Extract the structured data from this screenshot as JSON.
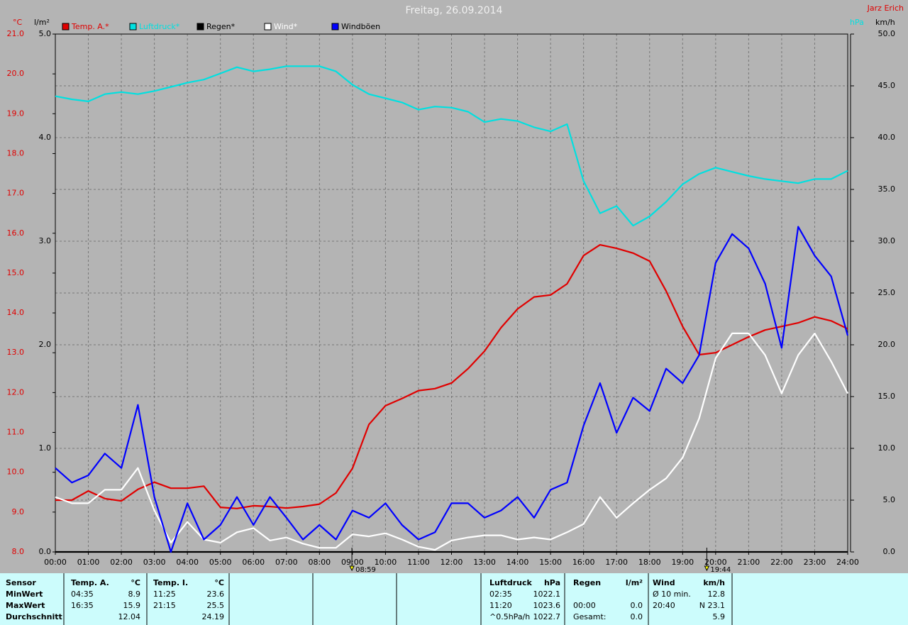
{
  "chart_data": {
    "type": "line",
    "title": "Freitag, 26.09.2014",
    "author": "Jarz Erich",
    "categories": [
      "00:00",
      null,
      "01:00",
      null,
      "02:00",
      null,
      "03:00",
      null,
      "04:00",
      null,
      "05:00",
      null,
      "06:00",
      null,
      "07:00",
      null,
      "08:00",
      null,
      "09:00",
      null,
      "10:00",
      null,
      "11:00",
      null,
      "12:00",
      null,
      "13:00",
      null,
      "14:00",
      null,
      "15:00",
      null,
      "16:00",
      null,
      "17:00",
      null,
      "18:00",
      null,
      "19:00",
      null,
      "20:00",
      null,
      "21:00",
      null,
      "22:00",
      null,
      "23:00",
      null,
      "24:00"
    ],
    "series": [
      {
        "name": "Temp. A.*",
        "color": "#e00000",
        "axis": "y",
        "values": [
          9.3,
          9.3,
          9.53,
          9.34,
          9.28,
          9.57,
          9.75,
          9.6,
          9.6,
          9.65,
          9.12,
          9.09,
          9.16,
          9.14,
          9.1,
          9.14,
          9.2,
          9.48,
          10.1,
          11.2,
          11.67,
          11.85,
          12.05,
          12.1,
          12.24,
          12.6,
          13.04,
          13.63,
          14.1,
          14.4,
          14.45,
          14.73,
          15.44,
          15.71,
          15.62,
          15.5,
          15.3,
          14.55,
          13.66,
          12.95,
          13.0,
          13.2,
          13.4,
          13.57,
          13.66,
          13.75,
          13.9,
          13.8,
          13.6
        ]
      },
      {
        "name": "Luftdruck*",
        "color": "#00e0e0",
        "axis": "y3",
        "values": [
          1024.4,
          1024.37,
          1024.35,
          1024.42,
          1024.44,
          1024.42,
          1024.45,
          1024.49,
          1024.53,
          1024.56,
          1024.62,
          1024.68,
          1024.64,
          1024.66,
          1024.69,
          1024.69,
          1024.69,
          1024.64,
          1024.51,
          1024.42,
          1024.38,
          1024.34,
          1024.27,
          1024.3,
          1024.29,
          1024.25,
          1024.15,
          1024.18,
          1024.16,
          1024.1,
          1024.06,
          1024.13,
          1023.58,
          1023.27,
          1023.34,
          1023.15,
          1023.24,
          1023.38,
          1023.55,
          1023.65,
          1023.71,
          1023.67,
          1023.63,
          1023.6,
          1023.58,
          1023.56,
          1023.6,
          1023.6,
          1023.68
        ]
      },
      {
        "name": "Regen*",
        "color": "#000000",
        "axis": "y2",
        "values": [
          0,
          0,
          0,
          0,
          0,
          0,
          0,
          0,
          0,
          0,
          0,
          0,
          0,
          0,
          0,
          0,
          0,
          0,
          0,
          0,
          0,
          0,
          0,
          0,
          0,
          0,
          0,
          0,
          0,
          0,
          0,
          0,
          0,
          0,
          0,
          0,
          0,
          0,
          0,
          0,
          0,
          0,
          0,
          0,
          0,
          0,
          0,
          0,
          0
        ]
      },
      {
        "name": "Wind*",
        "color": "#ffffff",
        "axis": "y4",
        "values": [
          5.3,
          4.7,
          4.7,
          6.0,
          6.0,
          8.1,
          4.0,
          0.9,
          2.9,
          1.2,
          0.9,
          1.9,
          2.3,
          1.1,
          1.4,
          0.8,
          0.4,
          0.4,
          1.7,
          1.5,
          1.8,
          1.2,
          0.5,
          0.2,
          1.1,
          1.4,
          1.6,
          1.6,
          1.2,
          1.4,
          1.2,
          1.9,
          2.7,
          5.3,
          3.3,
          4.7,
          6.0,
          7.1,
          9.1,
          12.9,
          18.7,
          21.1,
          21.1,
          19.0,
          15.3,
          19.0,
          21.1,
          18.4,
          15.3
        ]
      },
      {
        "name": "Windböen",
        "color": "#0000ff",
        "axis": "y4",
        "values": [
          8.1,
          6.7,
          7.4,
          9.5,
          8.1,
          14.2,
          5.3,
          0,
          4.7,
          1.2,
          2.6,
          5.3,
          2.6,
          5.3,
          3.3,
          1.2,
          2.6,
          1.2,
          4.0,
          3.3,
          4.7,
          2.6,
          1.2,
          1.9,
          4.7,
          4.7,
          3.3,
          4.0,
          5.3,
          3.3,
          6.0,
          6.7,
          12.2,
          16.3,
          11.5,
          14.9,
          13.6,
          17.7,
          16.3,
          19.0,
          27.9,
          30.7,
          29.3,
          25.9,
          19.7,
          31.4,
          28.6,
          26.6,
          20.9
        ]
      }
    ],
    "ylabel": "°C",
    "ylim": [
      8,
      21
    ],
    "yticks": [
      {
        "value": 8,
        "label": "8.0"
      },
      {
        "value": 9,
        "label": "9.0"
      },
      {
        "value": 10,
        "label": "10.0"
      },
      {
        "value": 11,
        "label": "11.0"
      },
      {
        "value": 12,
        "label": "12.0"
      },
      {
        "value": 13,
        "label": "13.0"
      },
      {
        "value": 14,
        "label": "14.0"
      },
      {
        "value": 15,
        "label": "15.0"
      },
      {
        "value": 16,
        "label": "16.0"
      },
      {
        "value": 17,
        "label": "17.0"
      },
      {
        "value": 18,
        "label": "18.0"
      },
      {
        "value": 19,
        "label": "19.0"
      },
      {
        "value": 20,
        "label": "20.0"
      },
      {
        "value": 21,
        "label": "21.0"
      }
    ],
    "y2label": "l/m²",
    "y2lim": [
      0,
      5
    ],
    "y2ticks": [
      {
        "value": 0,
        "label": "0.0"
      },
      {
        "value": 1,
        "label": "1.0"
      },
      {
        "value": 2,
        "label": "2.0"
      },
      {
        "value": 3,
        "label": "3.0"
      },
      {
        "value": 4,
        "label": "4.0"
      },
      {
        "value": 5,
        "label": "5.0"
      }
    ],
    "y3label": "hPa",
    "y3lim": [
      1020,
      1025
    ],
    "y4label": "km/h",
    "y4lim": [
      0,
      50
    ],
    "y4ticks": [
      {
        "value": 0,
        "label": "0.0"
      },
      {
        "value": 5,
        "label": "5.0"
      },
      {
        "value": 10,
        "label": "10.0"
      },
      {
        "value": 15,
        "label": "15.0"
      },
      {
        "value": 20,
        "label": "20.0"
      },
      {
        "value": 25,
        "label": "25.0"
      },
      {
        "value": 30,
        "label": "30.0"
      },
      {
        "value": 35,
        "label": "35.0"
      },
      {
        "value": 40,
        "label": "40.0"
      },
      {
        "value": 45,
        "label": "45.0"
      },
      {
        "value": 50,
        "label": "50.0"
      }
    ],
    "markers": [
      {
        "value": 8.983,
        "label": "08:59"
      },
      {
        "value": 19.733,
        "label": "19:44"
      }
    ],
    "grid": true
  },
  "panel": {
    "blocks": [
      {
        "header": [
          "Sensor"
        ],
        "rows": [
          [
            "MinWert"
          ],
          [
            "MaxWert"
          ],
          [
            "Durchschnitt"
          ]
        ]
      },
      {
        "header": [
          "Temp. A.",
          "°C"
        ],
        "rows": [
          [
            "04:35",
            "8.9"
          ],
          [
            "16:35",
            "15.9"
          ],
          [
            null,
            "12.04"
          ]
        ]
      },
      {
        "header": [
          "Temp. I.",
          "°C"
        ],
        "rows": [
          [
            "11:25",
            "23.6"
          ],
          [
            "21:15",
            "25.5"
          ],
          [
            null,
            "24.19"
          ]
        ]
      },
      {
        "header": [
          "Luftdruck",
          "hPa"
        ],
        "rows": [
          [
            "02:35",
            "1022.1"
          ],
          [
            "11:20",
            "1023.6"
          ],
          [
            "^0.5hPa/h",
            "1022.7"
          ]
        ]
      },
      {
        "header": [
          "Regen",
          "l/m²"
        ],
        "rows": [
          [
            null,
            null
          ],
          [
            "00:00",
            "0.0"
          ],
          [
            "Gesamt:",
            "0.0"
          ]
        ]
      },
      {
        "header": [
          "Wind",
          "km/h"
        ],
        "rows": [
          [
            "Ø 10 min.",
            "12.8"
          ],
          [
            "20:40",
            "N 23.1"
          ],
          [
            null,
            "5.9"
          ]
        ]
      }
    ]
  }
}
